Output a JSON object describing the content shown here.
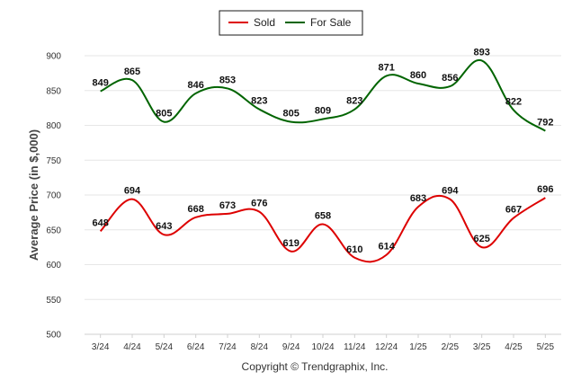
{
  "chart_data": {
    "type": "line",
    "categories": [
      "3/24",
      "4/24",
      "5/24",
      "6/24",
      "7/24",
      "8/24",
      "9/24",
      "10/24",
      "11/24",
      "12/24",
      "1/25",
      "2/25",
      "3/25",
      "4/25",
      "5/25"
    ],
    "series": [
      {
        "name": "Sold",
        "color": "#dd0000",
        "values": [
          648,
          694,
          643,
          668,
          673,
          676,
          619,
          658,
          610,
          614,
          683,
          694,
          625,
          667,
          696
        ]
      },
      {
        "name": "For Sale",
        "color": "#006400",
        "values": [
          849,
          865,
          805,
          846,
          853,
          823,
          805,
          809,
          823,
          871,
          860,
          856,
          893,
          822,
          792
        ]
      }
    ],
    "ylabel": "Average Price (in $,000)",
    "xlabel": "",
    "ylim": [
      500,
      900
    ],
    "yticks": [
      500,
      550,
      600,
      650,
      700,
      750,
      800,
      850,
      900
    ],
    "grid": true,
    "legend": "top-center",
    "footer": "Copyright © Trendgraphix, Inc."
  }
}
